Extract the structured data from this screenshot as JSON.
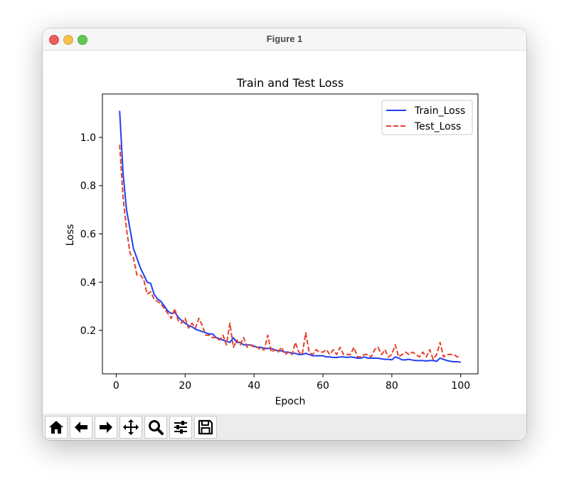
{
  "window": {
    "title": "Figure 1"
  },
  "toolbar": {
    "buttons": [
      {
        "name": "home-button",
        "icon": "home-icon"
      },
      {
        "name": "back-button",
        "icon": "arrow-left-icon"
      },
      {
        "name": "forward-button",
        "icon": "arrow-right-icon"
      },
      {
        "name": "pan-button",
        "icon": "move-icon"
      },
      {
        "name": "zoom-button",
        "icon": "magnifier-icon"
      },
      {
        "name": "configure-subplots-button",
        "icon": "sliders-icon"
      },
      {
        "name": "save-button",
        "icon": "floppy-disk-icon"
      }
    ]
  },
  "chart_data": {
    "type": "line",
    "title": "Train and Test Loss",
    "xlabel": "Epoch",
    "ylabel": "Loss",
    "xlim": [
      -4,
      105
    ],
    "ylim": [
      0.02,
      1.18
    ],
    "xticks": [
      0,
      20,
      40,
      60,
      80,
      100
    ],
    "yticks": [
      0.2,
      0.4,
      0.6,
      0.8,
      1.0
    ],
    "ytick_labels": [
      "0.2",
      "0.4",
      "0.6",
      "0.8",
      "1.0"
    ],
    "xtick_labels": [
      "0",
      "20",
      "40",
      "60",
      "80",
      "100"
    ],
    "grid": false,
    "legend_position": "top-right",
    "x": [
      1,
      2,
      3,
      4,
      5,
      6,
      7,
      8,
      9,
      10,
      11,
      12,
      13,
      14,
      15,
      16,
      17,
      18,
      19,
      20,
      21,
      22,
      23,
      24,
      25,
      26,
      27,
      28,
      29,
      30,
      31,
      32,
      33,
      34,
      35,
      36,
      37,
      38,
      39,
      40,
      41,
      42,
      43,
      44,
      45,
      46,
      47,
      48,
      49,
      50,
      51,
      52,
      53,
      54,
      55,
      56,
      57,
      58,
      59,
      60,
      61,
      62,
      63,
      64,
      65,
      66,
      67,
      68,
      69,
      70,
      71,
      72,
      73,
      74,
      75,
      76,
      77,
      78,
      79,
      80,
      81,
      82,
      83,
      84,
      85,
      86,
      87,
      88,
      89,
      90,
      91,
      92,
      93,
      94,
      95,
      96,
      97,
      98,
      99,
      100
    ],
    "series": [
      {
        "name": "Train_Loss",
        "color": "#1f3ff0",
        "style": "solid",
        "values": [
          1.11,
          0.85,
          0.7,
          0.62,
          0.54,
          0.5,
          0.46,
          0.43,
          0.4,
          0.395,
          0.35,
          0.33,
          0.32,
          0.3,
          0.28,
          0.27,
          0.275,
          0.255,
          0.24,
          0.23,
          0.22,
          0.215,
          0.205,
          0.2,
          0.195,
          0.19,
          0.185,
          0.185,
          0.17,
          0.165,
          0.16,
          0.155,
          0.15,
          0.17,
          0.15,
          0.15,
          0.14,
          0.14,
          0.14,
          0.135,
          0.13,
          0.13,
          0.125,
          0.125,
          0.125,
          0.12,
          0.115,
          0.115,
          0.11,
          0.11,
          0.105,
          0.105,
          0.1,
          0.1,
          0.105,
          0.1,
          0.095,
          0.095,
          0.095,
          0.095,
          0.09,
          0.09,
          0.088,
          0.088,
          0.09,
          0.09,
          0.088,
          0.09,
          0.088,
          0.085,
          0.085,
          0.09,
          0.085,
          0.085,
          0.085,
          0.085,
          0.082,
          0.08,
          0.08,
          0.078,
          0.09,
          0.085,
          0.078,
          0.078,
          0.08,
          0.077,
          0.075,
          0.075,
          0.075,
          0.073,
          0.075,
          0.075,
          0.072,
          0.085,
          0.08,
          0.075,
          0.072,
          0.07,
          0.07,
          0.068
        ]
      },
      {
        "name": "Test_Loss",
        "color": "#e8402a",
        "style": "dashed",
        "values": [
          0.97,
          0.75,
          0.62,
          0.52,
          0.5,
          0.43,
          0.43,
          0.41,
          0.35,
          0.36,
          0.33,
          0.32,
          0.31,
          0.29,
          0.27,
          0.25,
          0.29,
          0.24,
          0.23,
          0.25,
          0.21,
          0.23,
          0.21,
          0.25,
          0.22,
          0.18,
          0.18,
          0.17,
          0.17,
          0.16,
          0.18,
          0.14,
          0.23,
          0.13,
          0.16,
          0.14,
          0.17,
          0.13,
          0.14,
          0.13,
          0.13,
          0.12,
          0.12,
          0.18,
          0.11,
          0.12,
          0.11,
          0.13,
          0.1,
          0.11,
          0.1,
          0.15,
          0.11,
          0.1,
          0.19,
          0.11,
          0.1,
          0.12,
          0.11,
          0.11,
          0.12,
          0.1,
          0.12,
          0.1,
          0.13,
          0.1,
          0.1,
          0.1,
          0.13,
          0.09,
          0.09,
          0.1,
          0.1,
          0.09,
          0.12,
          0.13,
          0.1,
          0.12,
          0.09,
          0.1,
          0.14,
          0.09,
          0.1,
          0.11,
          0.1,
          0.11,
          0.1,
          0.09,
          0.11,
          0.09,
          0.12,
          0.08,
          0.1,
          0.15,
          0.09,
          0.1,
          0.1,
          0.1,
          0.09,
          0.095
        ]
      }
    ]
  }
}
